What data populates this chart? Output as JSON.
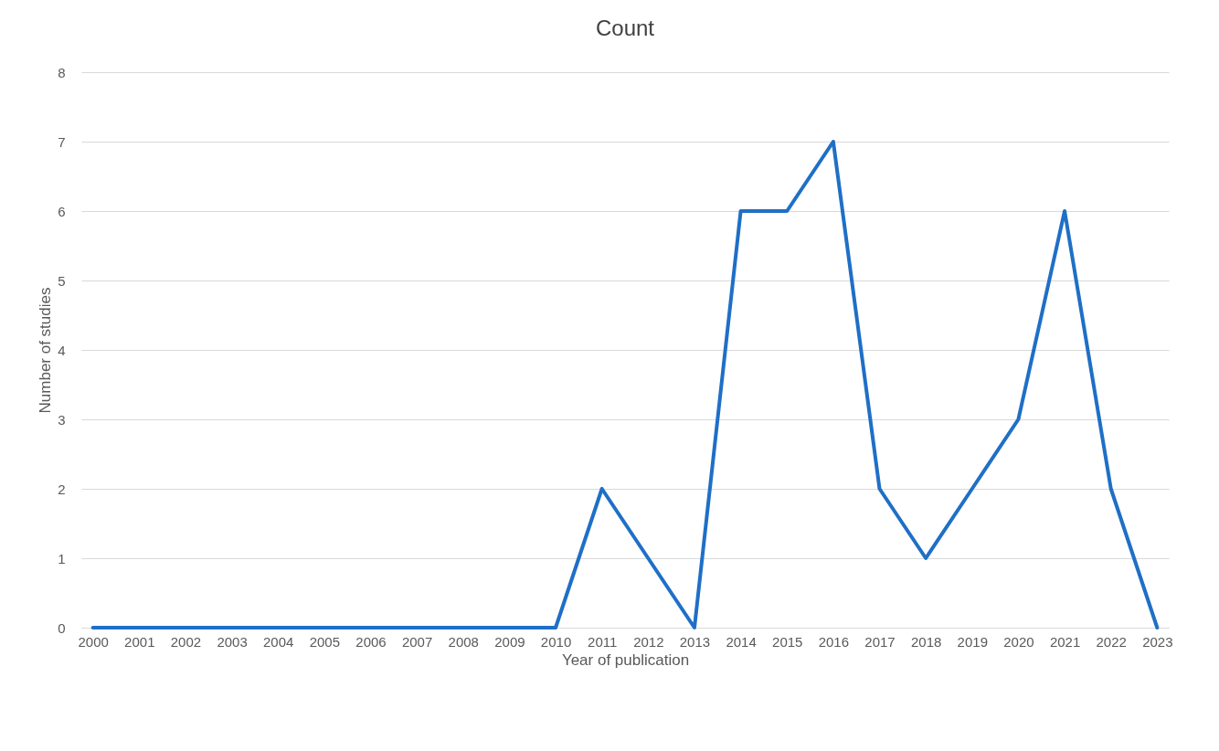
{
  "chart_data": {
    "type": "line",
    "title": "Count",
    "xlabel": "Year of publication",
    "ylabel": "Number of studies",
    "categories": [
      "2000",
      "2001",
      "2002",
      "2003",
      "2004",
      "2005",
      "2006",
      "2007",
      "2008",
      "2009",
      "2010",
      "2011",
      "2012",
      "2013",
      "2014",
      "2015",
      "2016",
      "2017",
      "2018",
      "2019",
      "2020",
      "2021",
      "2022",
      "2023"
    ],
    "series": [
      {
        "color": "#1f6fc6",
        "values": [
          0,
          0,
          0,
          0,
          0,
          0,
          0,
          0,
          0,
          0,
          0,
          2,
          1,
          0,
          6,
          6,
          7,
          2,
          1,
          2,
          3,
          6,
          2,
          0
        ]
      }
    ],
    "ylim": [
      0,
      8
    ],
    "yticks": [
      0,
      1,
      2,
      3,
      4,
      5,
      6,
      7,
      8
    ],
    "grid": "y",
    "marker": "none",
    "line_style": "solid"
  }
}
